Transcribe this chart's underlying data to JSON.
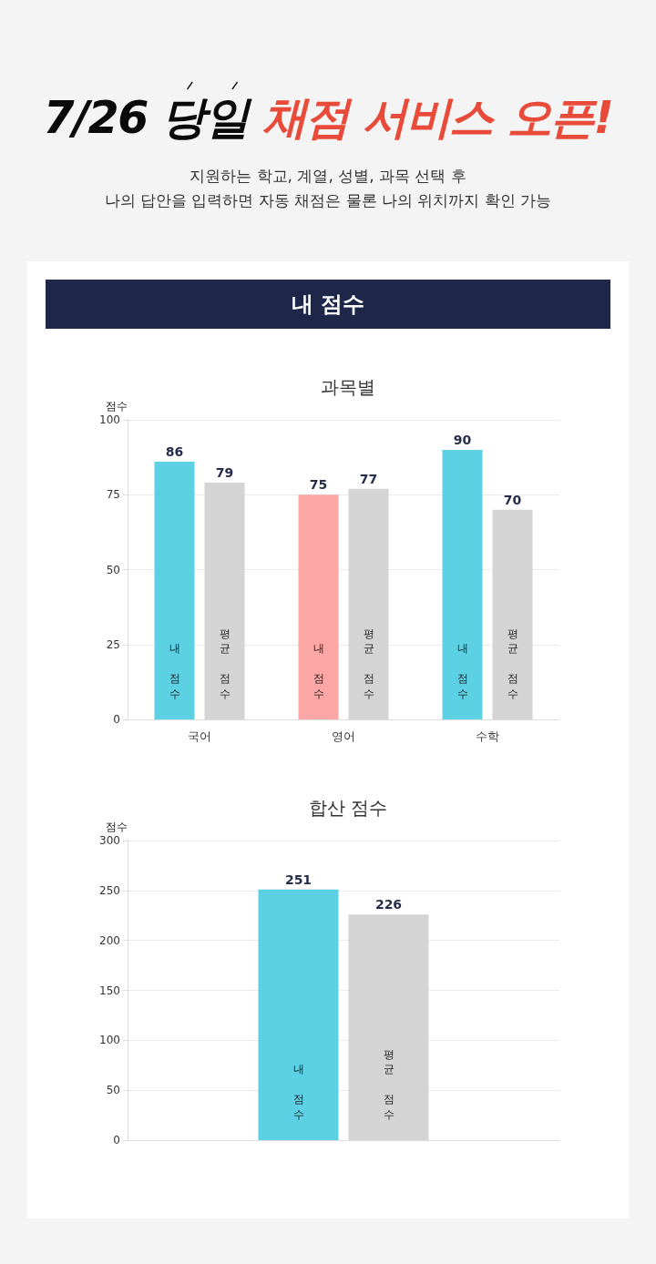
{
  "chart_data": [
    {
      "type": "other",
      "title": "7/26 당일 채점 서비스 오픈!",
      "subtitle": "지원하는 학교, 계열, 성별, 과목 선택 후\n나의 답안을 입력하면 자동 채점은 물론 나의 위치까지 확인 가능",
      "annotations": [
        "내 점수"
      ]
    },
    {
      "type": "bar",
      "title": "과목별",
      "ylabel": "점수",
      "categories": [
        "국어",
        "영어",
        "수학"
      ],
      "series": [
        {
          "name": "내 점수",
          "colors": [
            "#5dd1e4",
            "#fca6a6",
            "#5dd1e4"
          ],
          "values": [
            86,
            75,
            90
          ]
        },
        {
          "name": "평균 점수",
          "color": "#d4d4d4",
          "values": [
            79,
            77,
            70
          ]
        }
      ],
      "ylim": [
        0,
        100
      ],
      "yticks": [
        0,
        25,
        50,
        75,
        100
      ],
      "grid": "y",
      "data_labels": true
    },
    {
      "type": "bar",
      "title": "합산 점수",
      "ylabel": "점수",
      "categories": [
        null
      ],
      "series": [
        {
          "name": "내 점수",
          "color": "#5dd1e4",
          "values": [
            251
          ]
        },
        {
          "name": "평균 점수",
          "color": "#d4d4d4",
          "values": [
            226
          ]
        }
      ],
      "ylim": [
        0,
        300
      ],
      "yticks": [
        0,
        50,
        100,
        150,
        200,
        250,
        300
      ],
      "grid": "y",
      "data_labels": true
    }
  ]
}
